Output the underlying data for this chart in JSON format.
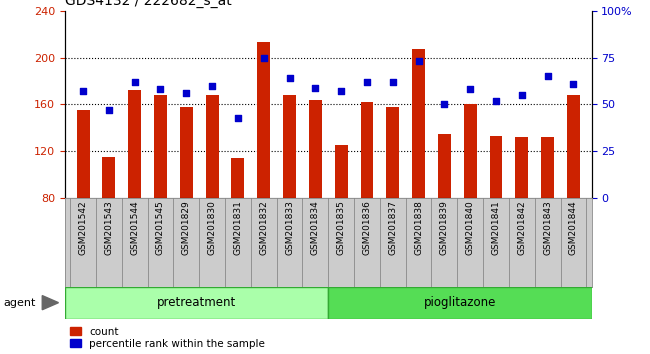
{
  "title": "GDS4132 / 222682_s_at",
  "categories": [
    "GSM201542",
    "GSM201543",
    "GSM201544",
    "GSM201545",
    "GSM201829",
    "GSM201830",
    "GSM201831",
    "GSM201832",
    "GSM201833",
    "GSM201834",
    "GSM201835",
    "GSM201836",
    "GSM201837",
    "GSM201838",
    "GSM201839",
    "GSM201840",
    "GSM201841",
    "GSM201842",
    "GSM201843",
    "GSM201844"
  ],
  "counts": [
    155,
    115,
    172,
    168,
    158,
    168,
    114,
    213,
    168,
    164,
    125,
    162,
    158,
    207,
    135,
    160,
    133,
    132,
    132,
    168
  ],
  "percentiles": [
    57,
    47,
    62,
    58,
    56,
    60,
    43,
    75,
    64,
    59,
    57,
    62,
    62,
    73,
    50,
    58,
    52,
    55,
    65,
    61
  ],
  "bar_color": "#cc2200",
  "dot_color": "#0000cc",
  "ylim_left": [
    80,
    240
  ],
  "ylim_right": [
    0,
    100
  ],
  "yticks_left": [
    80,
    120,
    160,
    200,
    240
  ],
  "yticks_right": [
    0,
    25,
    50,
    75,
    100
  ],
  "ylabel_left_color": "#cc2200",
  "ylabel_right_color": "#0000cc",
  "pretreatment_label": "pretreatment",
  "pioglitazone_label": "pioglitazone",
  "agent_label": "agent",
  "legend_count_label": "count",
  "legend_percentile_label": "percentile rank within the sample",
  "pretreatment_color": "#aaffaa",
  "pioglitazone_color": "#55dd55",
  "tick_label_fontsize": 6.5,
  "title_fontsize": 10,
  "n_pretreatment": 10,
  "bar_width": 0.5
}
